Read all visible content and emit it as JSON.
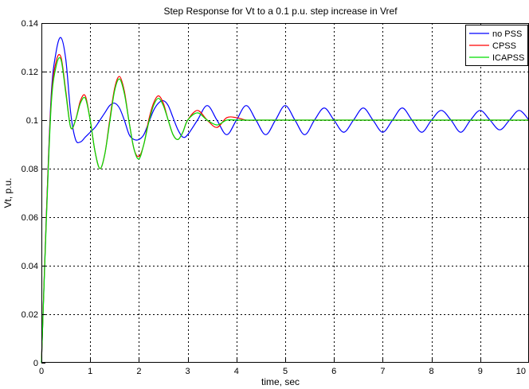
{
  "chart_data": {
    "type": "line",
    "title": "Step Response for Vt to a 0.1 p.u. step increase in Vref",
    "xlabel": "time, sec",
    "ylabel": "Vt, p.u.",
    "xlim": [
      0,
      10
    ],
    "ylim": [
      0,
      0.14
    ],
    "xticks": [
      "0",
      "1",
      "2",
      "3",
      "4",
      "5",
      "6",
      "7",
      "8",
      "9",
      "10"
    ],
    "yticks": [
      "0",
      "0.02",
      "0.04",
      "0.06",
      "0.08",
      "0.1",
      "0.12",
      "0.14"
    ],
    "grid": true,
    "legend_position": "top-right",
    "series": [
      {
        "name": "no PSS",
        "color": "#0000ff",
        "x": [
          0,
          0.1,
          0.2,
          0.3,
          0.4,
          0.5,
          0.6,
          0.7,
          0.8,
          0.9,
          1.0,
          1.1,
          1.2,
          1.3,
          1.4,
          1.5,
          1.6,
          1.7,
          1.8,
          1.9,
          2.0,
          2.1,
          2.2,
          2.3,
          2.4,
          2.5,
          2.6,
          2.7,
          2.8,
          2.9,
          3.0,
          3.2,
          3.4,
          3.6,
          3.8,
          4.0,
          4.2,
          4.4,
          4.6,
          4.8,
          5.0,
          5.2,
          5.4,
          5.6,
          5.8,
          6.0,
          6.2,
          6.4,
          6.6,
          6.8,
          7.0,
          7.2,
          7.4,
          7.6,
          7.8,
          8.0,
          8.2,
          8.4,
          8.6,
          8.8,
          9.0,
          9.2,
          9.4,
          9.6,
          9.8,
          10.0
        ],
        "y": [
          0,
          0.06,
          0.11,
          0.128,
          0.134,
          0.125,
          0.103,
          0.092,
          0.091,
          0.093,
          0.095,
          0.097,
          0.1,
          0.103,
          0.106,
          0.107,
          0.105,
          0.1,
          0.094,
          0.092,
          0.092,
          0.094,
          0.099,
          0.104,
          0.107,
          0.108,
          0.106,
          0.101,
          0.096,
          0.093,
          0.094,
          0.1,
          0.106,
          0.1,
          0.094,
          0.1,
          0.106,
          0.1,
          0.094,
          0.1,
          0.106,
          0.1,
          0.094,
          0.1,
          0.105,
          0.1,
          0.095,
          0.1,
          0.105,
          0.1,
          0.095,
          0.1,
          0.105,
          0.1,
          0.095,
          0.1,
          0.104,
          0.1,
          0.095,
          0.1,
          0.104,
          0.1,
          0.096,
          0.1,
          0.104,
          0.1
        ]
      },
      {
        "name": "CPSS",
        "color": "#ff0000",
        "x": [
          0,
          0.1,
          0.2,
          0.3,
          0.4,
          0.5,
          0.6,
          0.7,
          0.8,
          0.9,
          1.0,
          1.1,
          1.2,
          1.3,
          1.4,
          1.5,
          1.6,
          1.7,
          1.8,
          1.9,
          2.0,
          2.1,
          2.2,
          2.3,
          2.4,
          2.5,
          2.6,
          2.7,
          2.8,
          2.9,
          3.0,
          3.2,
          3.4,
          3.6,
          3.8,
          4.0,
          4.2,
          4.4,
          4.6,
          5.0,
          6.0,
          7.0,
          8.0,
          9.0,
          10.0
        ],
        "y": [
          0,
          0.06,
          0.108,
          0.124,
          0.126,
          0.112,
          0.097,
          0.1,
          0.108,
          0.11,
          0.1,
          0.087,
          0.08,
          0.086,
          0.1,
          0.113,
          0.118,
          0.112,
          0.099,
          0.088,
          0.085,
          0.09,
          0.1,
          0.107,
          0.11,
          0.107,
          0.1,
          0.094,
          0.092,
          0.095,
          0.1,
          0.104,
          0.1,
          0.097,
          0.101,
          0.101,
          0.1,
          0.1,
          0.1,
          0.1,
          0.1,
          0.1,
          0.1,
          0.1,
          0.1
        ]
      },
      {
        "name": "ICAPSS",
        "color": "#00dd00",
        "x": [
          0,
          0.1,
          0.2,
          0.3,
          0.4,
          0.5,
          0.6,
          0.7,
          0.8,
          0.9,
          1.0,
          1.1,
          1.2,
          1.3,
          1.4,
          1.5,
          1.6,
          1.7,
          1.8,
          1.9,
          2.0,
          2.1,
          2.2,
          2.3,
          2.4,
          2.5,
          2.6,
          2.7,
          2.8,
          2.9,
          3.0,
          3.2,
          3.4,
          3.6,
          3.8,
          4.0,
          4.2,
          4.4,
          4.6,
          5.0,
          6.0,
          7.0,
          8.0,
          9.0,
          10.0
        ],
        "y": [
          0,
          0.058,
          0.106,
          0.122,
          0.125,
          0.111,
          0.097,
          0.1,
          0.107,
          0.109,
          0.1,
          0.087,
          0.08,
          0.086,
          0.099,
          0.112,
          0.117,
          0.111,
          0.099,
          0.088,
          0.084,
          0.09,
          0.099,
          0.106,
          0.109,
          0.106,
          0.1,
          0.094,
          0.092,
          0.095,
          0.1,
          0.103,
          0.1,
          0.098,
          0.1,
          0.1,
          0.1,
          0.1,
          0.1,
          0.1,
          0.1,
          0.1,
          0.1,
          0.1,
          0.1
        ]
      }
    ]
  }
}
